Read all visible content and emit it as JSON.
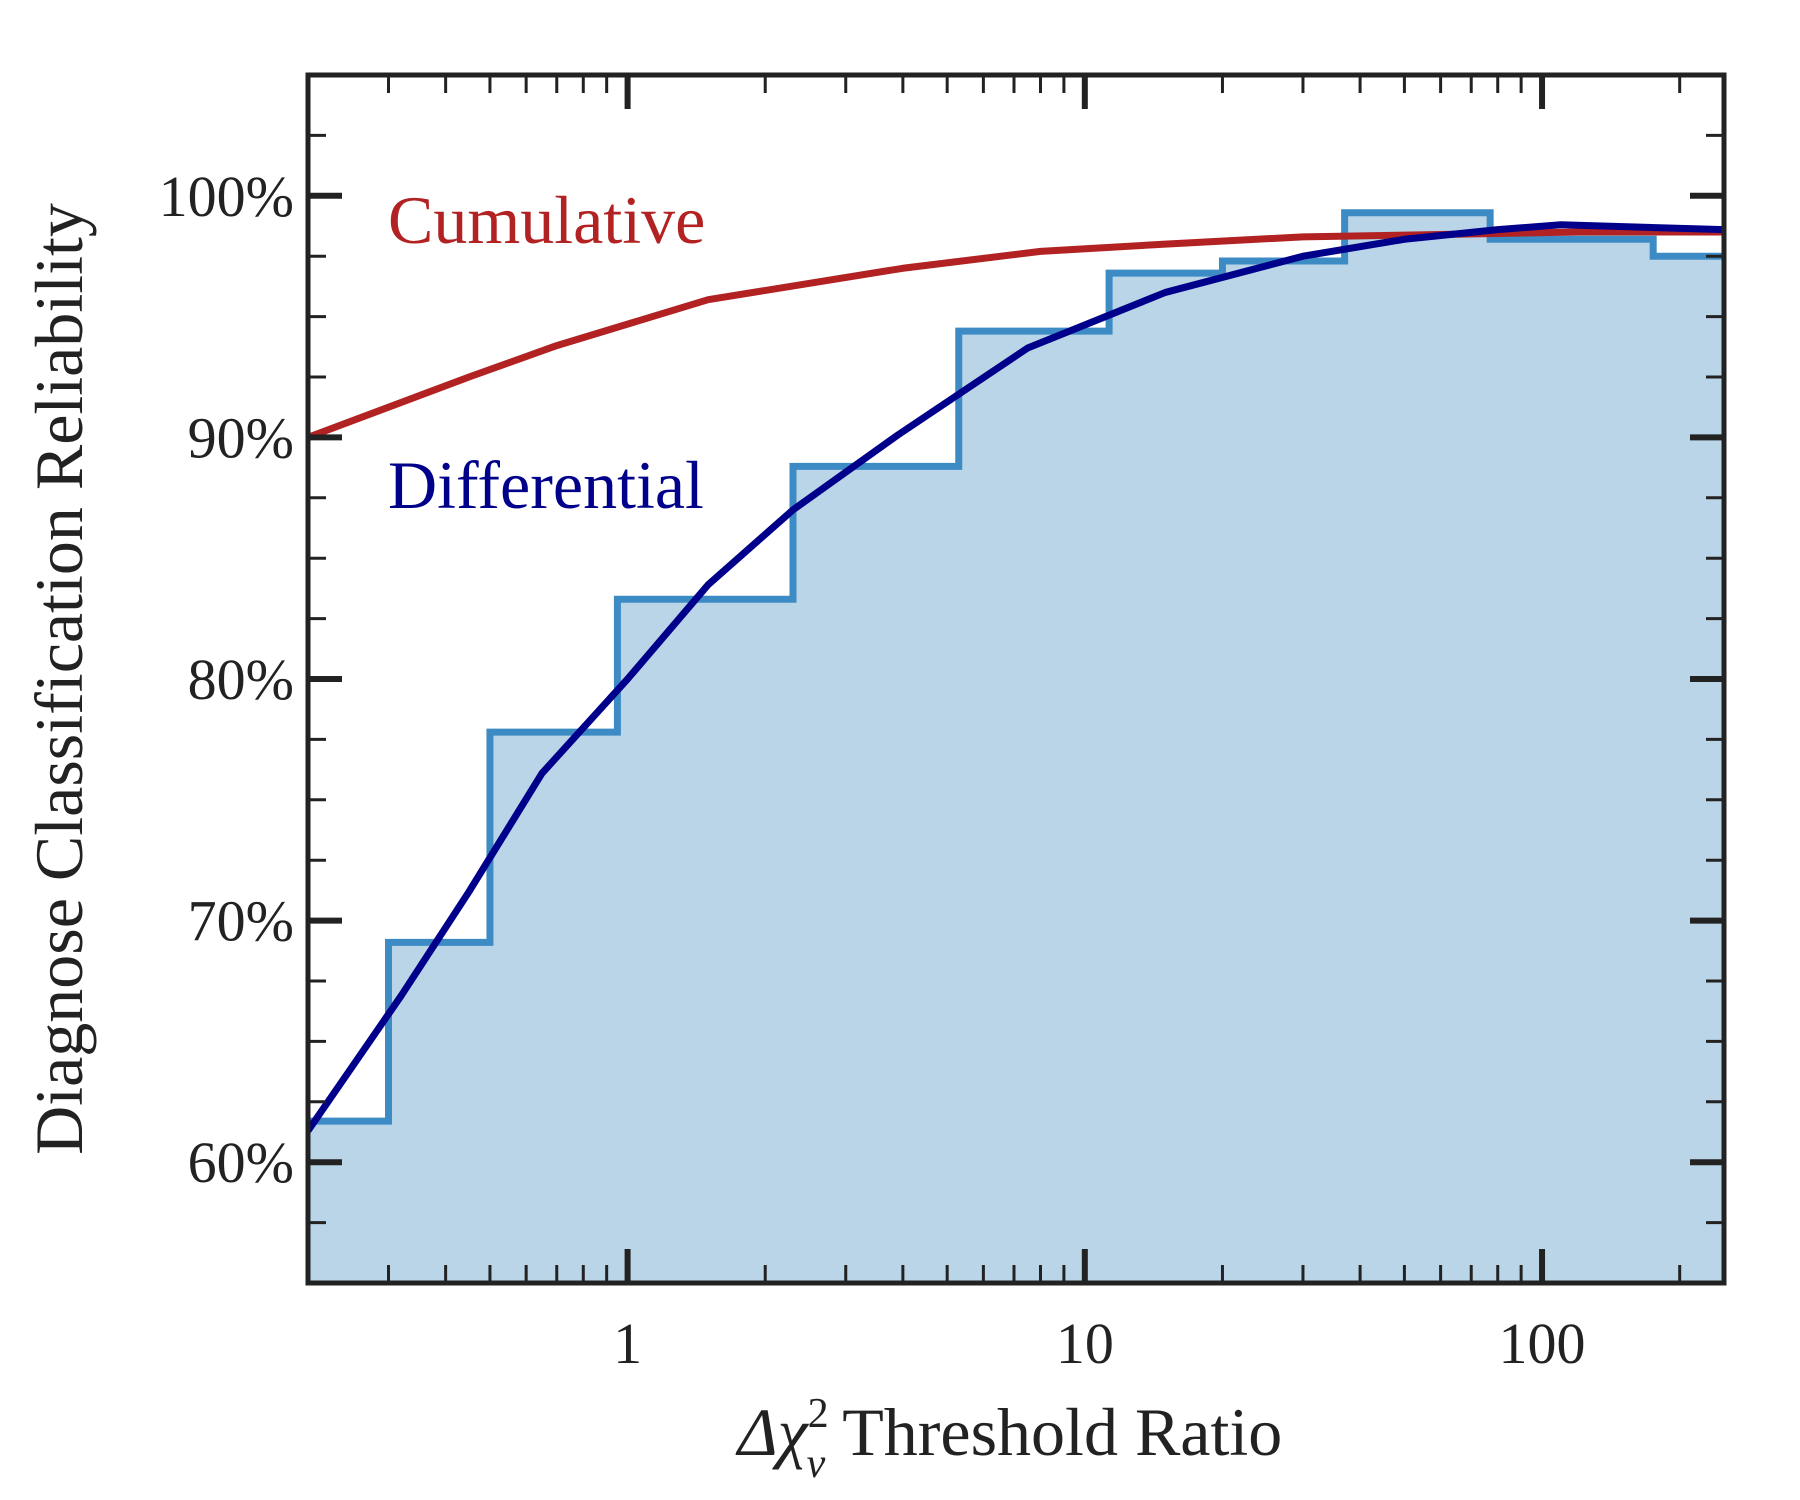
{
  "chart_data": {
    "type": "line",
    "title": "",
    "xlabel_symbol": "Δχ",
    "xlabel_sup": "2",
    "xlabel_sub": "ν",
    "xlabel_text": " Threshold Ratio",
    "ylabel": "Diagnose Classification Reliability",
    "xscale": "log",
    "xlim": [
      0.2,
      250
    ],
    "ylim": [
      55,
      105
    ],
    "x_ticks": [
      {
        "value": 1,
        "label": "1"
      },
      {
        "value": 10,
        "label": "10"
      },
      {
        "value": 100,
        "label": "100"
      }
    ],
    "y_ticks": [
      {
        "value": 60,
        "label": "60%"
      },
      {
        "value": 70,
        "label": "70%"
      },
      {
        "value": 80,
        "label": "80%"
      },
      {
        "value": 90,
        "label": "90%"
      },
      {
        "value": 100,
        "label": "100%"
      }
    ],
    "histogram": {
      "name": "Differential (binned)",
      "bin_edges": [
        0.2,
        0.3,
        0.5,
        0.95,
        2.3,
        5.3,
        11.3,
        20,
        37,
        77,
        175,
        250
      ],
      "values": [
        61.7,
        69.1,
        77.8,
        83.3,
        88.8,
        94.4,
        96.8,
        97.3,
        99.3,
        98.2,
        97.5
      ],
      "edge_color": "#3d8bc4",
      "fill_color": "#bad5e8"
    },
    "series": [
      {
        "name": "Cumulative",
        "color": "#b22222",
        "x": [
          0.2,
          0.45,
          0.7,
          1.5,
          4,
          8,
          15,
          30,
          60,
          120,
          250
        ],
        "y": [
          90,
          92.5,
          93.8,
          95.7,
          97,
          97.7,
          98,
          98.3,
          98.4,
          98.5,
          98.5
        ]
      },
      {
        "name": "Differential",
        "color": "#00008b",
        "x": [
          0.2,
          0.32,
          0.45,
          0.65,
          1.0,
          1.5,
          2.3,
          3.9,
          7.5,
          15,
          30,
          50,
          80,
          110,
          250
        ],
        "y": [
          61.3,
          66.9,
          71.2,
          76.1,
          80.0,
          83.9,
          87.0,
          90.1,
          93.7,
          96.0,
          97.5,
          98.2,
          98.6,
          98.8,
          98.6
        ]
      }
    ],
    "legend": [
      {
        "label": "Cumulative",
        "color": "#b22222"
      },
      {
        "label": "Differential",
        "color": "#00008b"
      }
    ]
  }
}
